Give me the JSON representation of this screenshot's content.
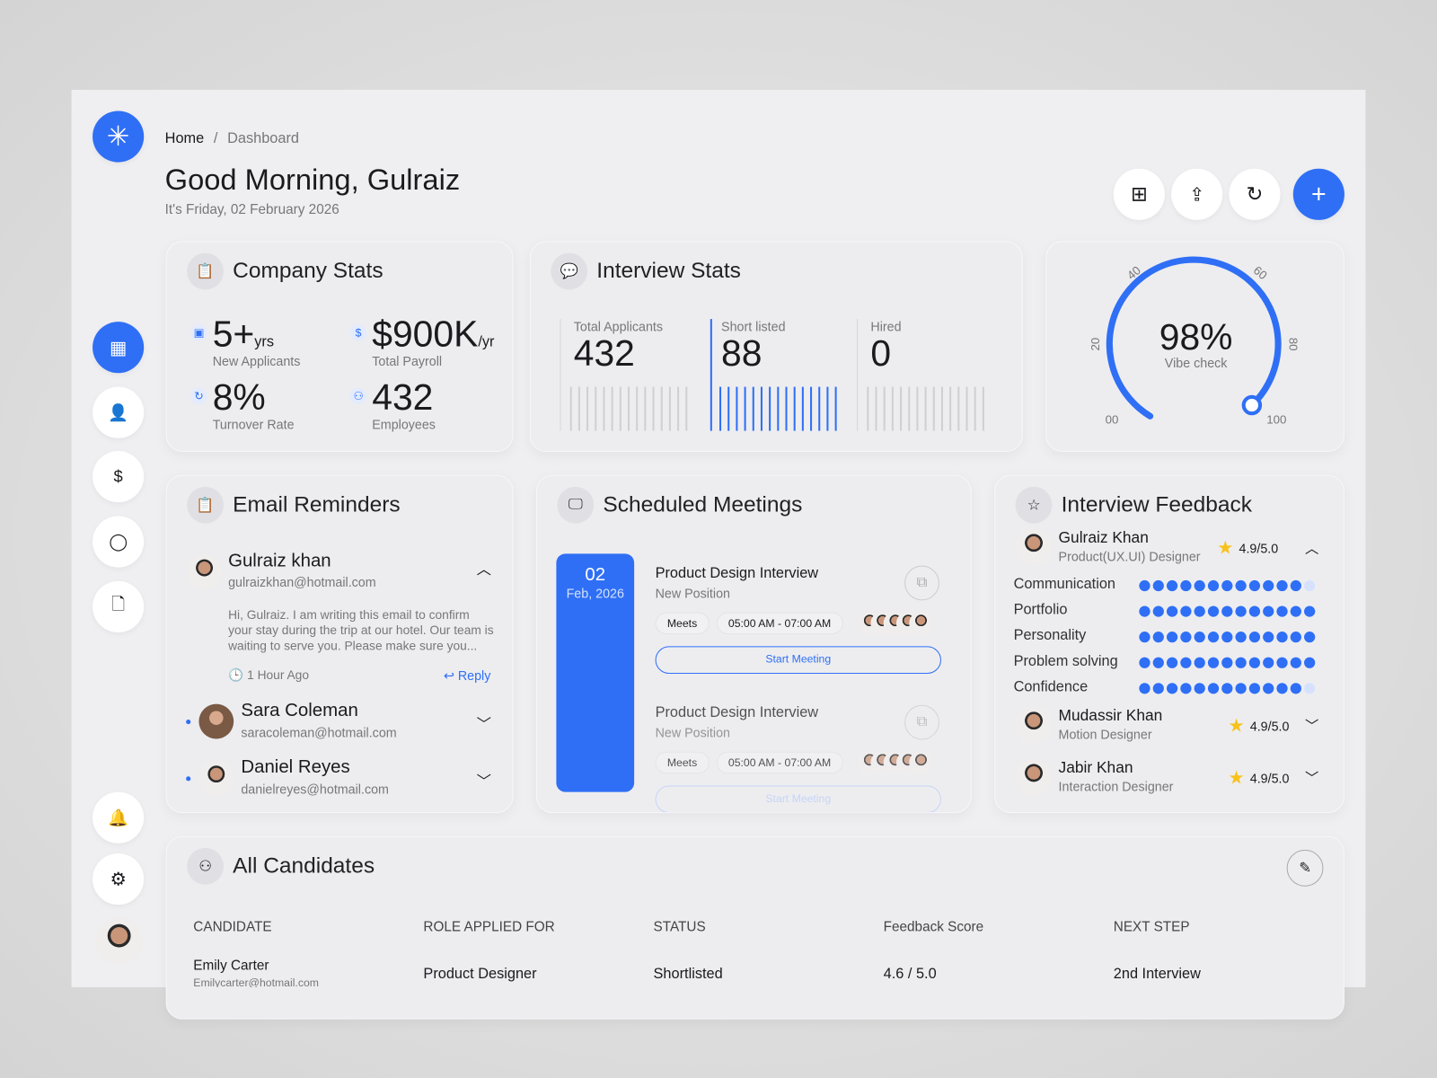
{
  "breadcrumb": {
    "home": "Home",
    "sep": "/",
    "current": "Dashboard"
  },
  "greeting": "Good Morning, Gulraiz",
  "date": "It's Friday, 02 February 2026",
  "toolbar": {
    "icons": [
      "grid-icon",
      "share-icon",
      "refresh-icon",
      "plus-icon"
    ],
    "accent": "#2f6ff5"
  },
  "sidebar": {
    "items": [
      "dashboard-icon",
      "user-check-icon",
      "dollar-icon",
      "user-icon",
      "document-icon",
      "bell-icon",
      "settings-icon"
    ]
  },
  "company_stats": {
    "title": "Company Stats",
    "items": [
      {
        "value": "5+",
        "unit": "yrs",
        "label": "New Applicants",
        "icon": "briefcase-icon"
      },
      {
        "value": "$900K",
        "unit": "/yr",
        "label": "Total Payroll",
        "icon": "dollar-icon"
      },
      {
        "value": "8%",
        "unit": "",
        "label": "Turnover  Rate",
        "icon": "refresh-icon"
      },
      {
        "value": "432",
        "unit": "",
        "label": "Employees",
        "icon": "users-icon"
      }
    ]
  },
  "interview_stats": {
    "title": "Interview Stats",
    "items": [
      {
        "label": "Total Applicants",
        "value": "432"
      },
      {
        "label": "Short listed",
        "value": "88"
      },
      {
        "label": "Hired",
        "value": "0"
      }
    ]
  },
  "gauge": {
    "value": "98%",
    "label": "Vibe check",
    "percent": 98,
    "ticks": [
      "00",
      "20",
      "40",
      "60",
      "80",
      "100"
    ]
  },
  "email": {
    "title": "Email Reminders",
    "items": [
      {
        "name": "Gulraiz khan",
        "email": "gulraizkhan@hotmail.com",
        "body": "Hi, Gulraiz. I am writing this email to confirm your stay during the trip at our hotel. Our team is waiting to serve you. Please make sure you...",
        "time": "1 Hour Ago",
        "reply": "Reply"
      },
      {
        "name": "Sara Coleman",
        "email": "saracoleman@hotmail.com"
      },
      {
        "name": "Daniel Reyes",
        "email": "danielreyes@hotmail.com"
      }
    ]
  },
  "meetings": {
    "title": "Scheduled Meetings",
    "day": "02",
    "month": "Feb, 2026",
    "items": [
      {
        "title": "Product Design Interview",
        "sub": "New Position",
        "type": "Meets",
        "time": "05:00 AM - 07:00 AM",
        "button": "Start Meeting"
      },
      {
        "title": "Product Design Interview",
        "sub": "New Position",
        "type": "Meets",
        "time": "05:00 AM - 07:00 AM",
        "button": "Start Meeting"
      }
    ]
  },
  "feedback": {
    "title": "Interview Feedback",
    "people": [
      {
        "name": "Gulraiz Khan",
        "role": "Product(UX.UI) Designer",
        "rating": "4.9/5.0"
      },
      {
        "name": "Mudassir Khan",
        "role": "Motion Designer",
        "rating": "4.9/5.0"
      },
      {
        "name": "Jabir Khan",
        "role": "Interaction Designer",
        "rating": "4.9/5.0"
      }
    ],
    "criteria": [
      {
        "label": "Communication",
        "score": 12,
        "max": 13
      },
      {
        "label": "Portfolio",
        "score": 13,
        "max": 13
      },
      {
        "label": "Personality",
        "score": 13,
        "max": 13
      },
      {
        "label": "Problem solving",
        "score": 13,
        "max": 13
      },
      {
        "label": "Confidence",
        "score": 12,
        "max": 13
      }
    ]
  },
  "candidates": {
    "title": "All Candidates",
    "columns": [
      "CANDIDATE",
      "ROLE APPLIED FOR",
      "STATUS",
      "Feedback Score",
      "NEXT STEP"
    ],
    "rows": [
      {
        "name": "Emily Carter",
        "email": "Emilycarter@hotmail.com",
        "role": "Product Designer",
        "status": "Shortlisted",
        "score": "4.6 / 5.0",
        "next": "2nd Interview"
      }
    ]
  }
}
